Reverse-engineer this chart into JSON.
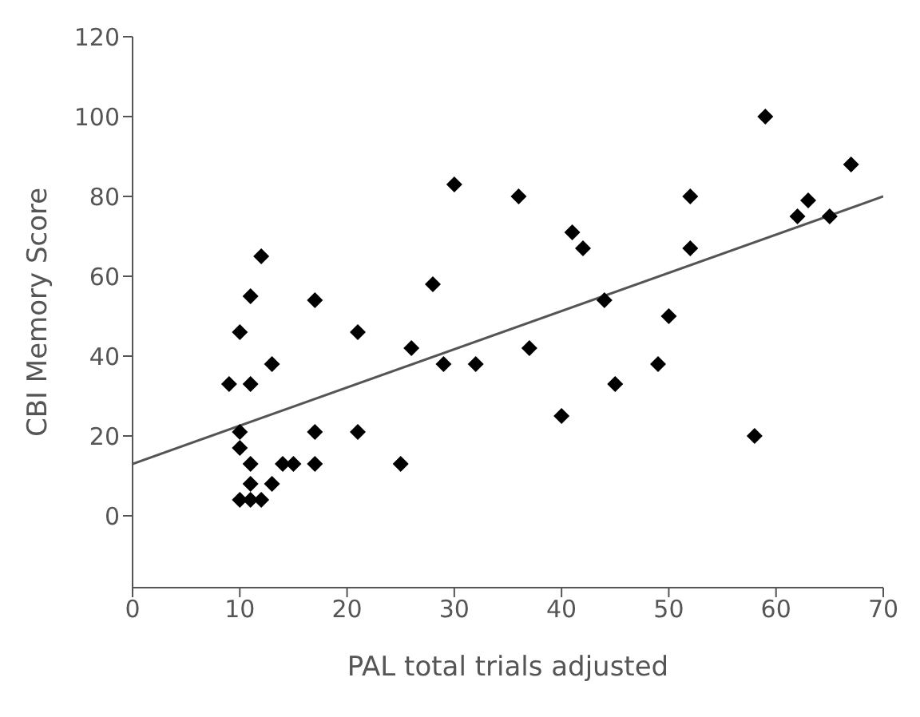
{
  "chart_data": {
    "type": "scatter",
    "xlabel": "PAL total trials adjusted",
    "ylabel": "CBI Memory Score",
    "xlim": [
      0,
      70
    ],
    "xticks": [
      0,
      10,
      20,
      30,
      40,
      50,
      60,
      70
    ],
    "ylim": [
      -18,
      120
    ],
    "yticks": [
      0,
      20,
      40,
      60,
      80,
      100,
      120
    ],
    "grid": false,
    "legend": false,
    "series": [
      {
        "color": "#000000",
        "marker": "diamond",
        "x": [
          9,
          10,
          10,
          10,
          10,
          11,
          12,
          11,
          11,
          11,
          11,
          12,
          13,
          13,
          14,
          15,
          17,
          17,
          17,
          21,
          21,
          25,
          26,
          28,
          29,
          30,
          32,
          36,
          37,
          40,
          41,
          42,
          44,
          45,
          49,
          50,
          52,
          52,
          58,
          59,
          62,
          63,
          65,
          67
        ],
        "values": [
          33,
          46,
          21,
          17,
          4,
          4,
          4,
          8,
          13,
          33,
          55,
          65,
          38,
          8,
          13,
          13,
          54,
          21,
          13,
          46,
          21,
          13,
          42,
          58,
          38,
          83,
          38,
          80,
          42,
          25,
          71,
          67,
          54,
          33,
          38,
          50,
          80,
          67,
          20,
          100,
          75,
          79,
          75,
          88
        ]
      },
      {
        "type": "line",
        "marker": "none",
        "color": "#555555",
        "x": [
          0,
          70
        ],
        "values": [
          13,
          80
        ]
      }
    ]
  }
}
